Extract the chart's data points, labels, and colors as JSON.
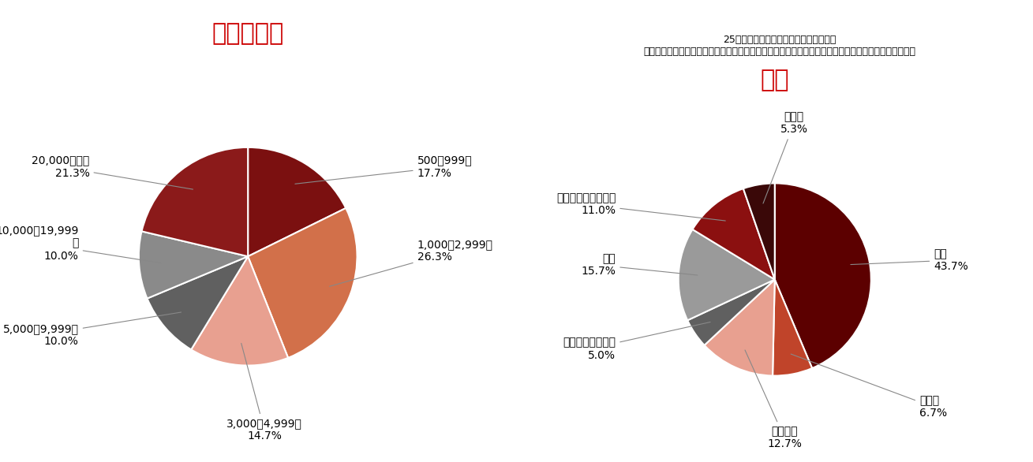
{
  "chart1_title": "従業員規模",
  "chart2_title": "業種",
  "chart2_subtitle1": "25業種にわけて回答いただいたものを、",
  "chart2_subtitle2": "製造、小売り、サービス、エネルギー・運輸、金融、ソフトウェア・通信、その他の主要７業種に分類",
  "pie1_values": [
    17.7,
    26.3,
    14.7,
    10.0,
    10.0,
    21.3
  ],
  "pie1_colors": [
    "#7B1010",
    "#D2704A",
    "#E8A090",
    "#606060",
    "#8A8A8A",
    "#8B1A1A"
  ],
  "pie1_names": [
    "500〜999人",
    "1,000〜2,999人",
    "3,000〜4,999人",
    "5,000〜9,999人",
    "10,000〜19,999\n人",
    "20,000人以上"
  ],
  "pie1_pcts": [
    "17.7%",
    "26.3%",
    "14.7%",
    "10.0%",
    "10.0%",
    "21.3%"
  ],
  "pie2_values": [
    43.7,
    6.7,
    12.7,
    5.0,
    15.7,
    11.0,
    5.3
  ],
  "pie2_colors": [
    "#5C0000",
    "#C0442A",
    "#E8A090",
    "#606060",
    "#9A9A9A",
    "#8B1010",
    "#3A0808"
  ],
  "pie2_names": [
    "製造",
    "小売り",
    "サービス",
    "エネルギー・運輸",
    "金融",
    "ソフトウェア・通信",
    "その他"
  ],
  "pie2_pcts": [
    "43.7%",
    "6.7%",
    "12.7%",
    "5.0%",
    "15.7%",
    "11.0%",
    "5.3%"
  ],
  "title_color": "#CC0000",
  "title_fontsize": 22,
  "label_fontsize": 10,
  "subtitle_fontsize": 9,
  "background_color": "#FFFFFF"
}
